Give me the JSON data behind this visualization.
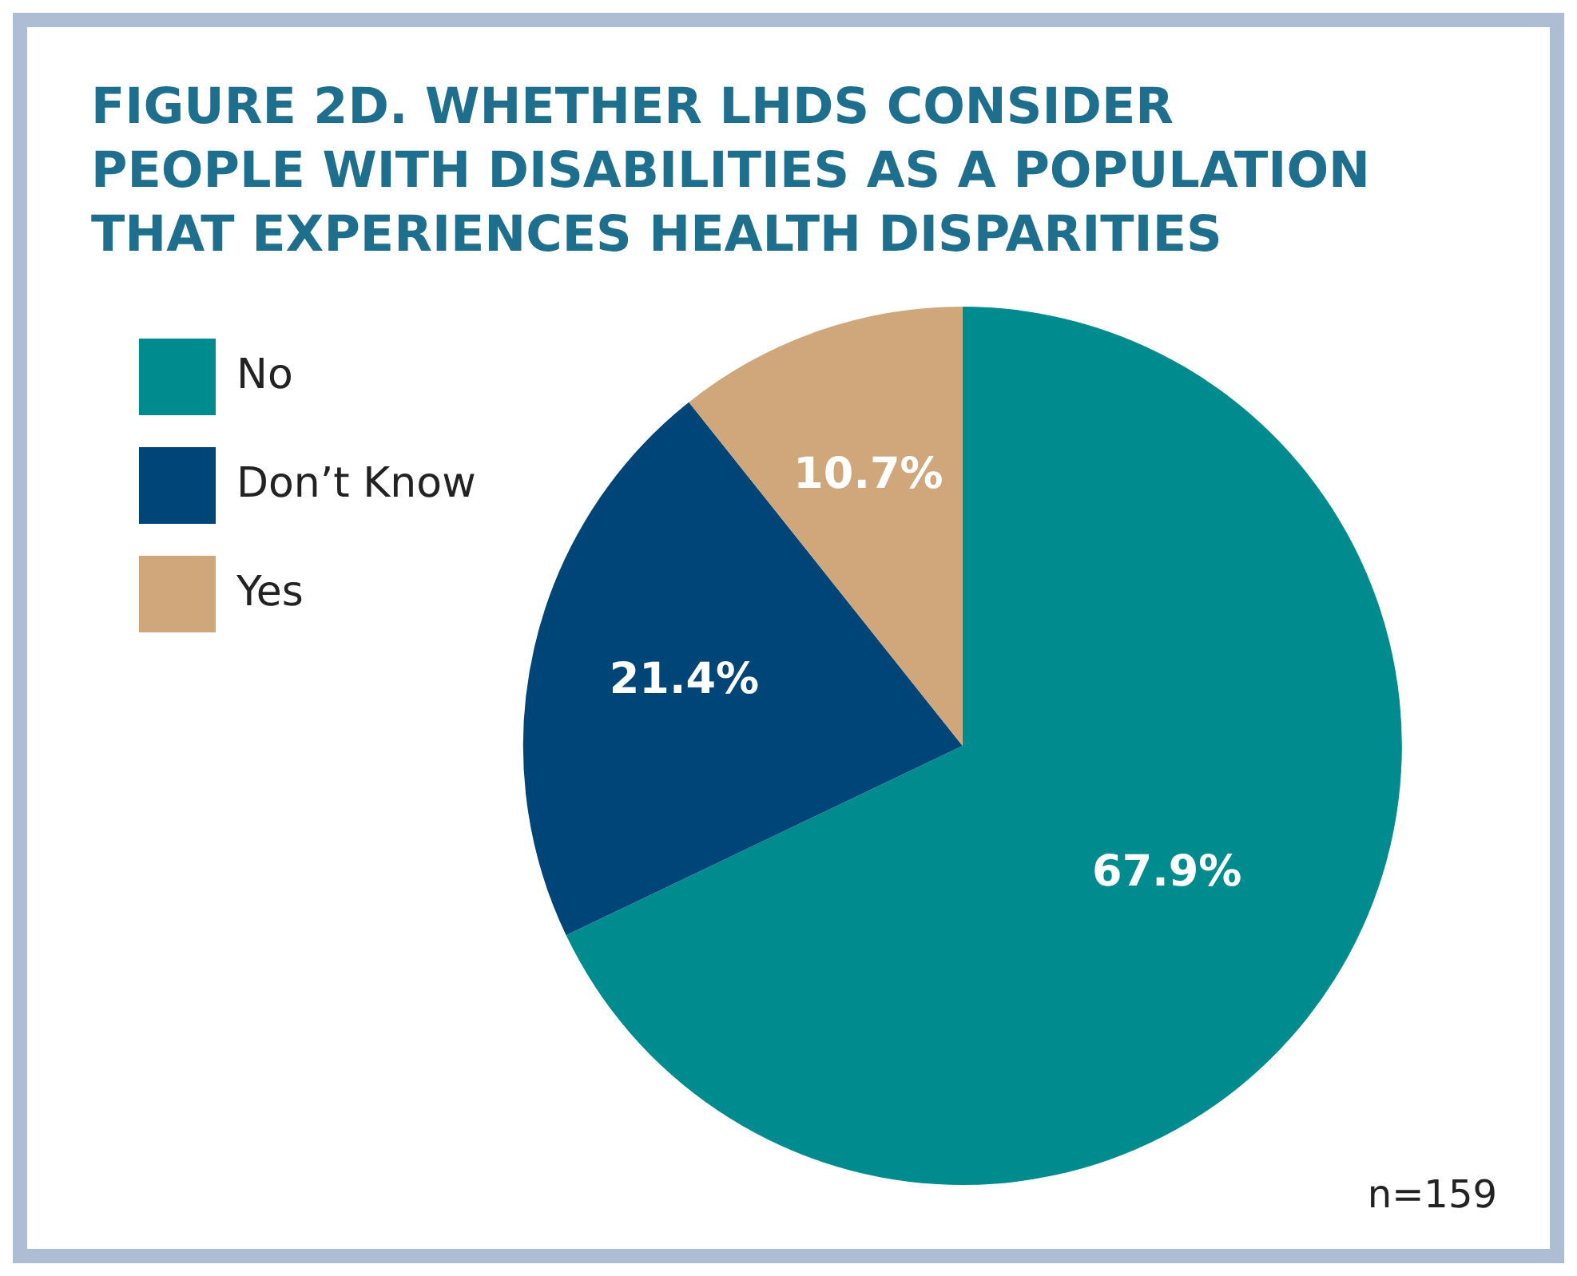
{
  "chart_data": {
    "type": "pie",
    "title": "FIGURE 2D. WHETHER LHDS CONSIDER PEOPLE WITH DISABILITIES AS A POPULATION THAT EXPERIENCES HEALTH DISPARITIES",
    "categories": [
      "No",
      "Don’t Know",
      "Yes"
    ],
    "values": [
      67.9,
      21.4,
      10.7
    ],
    "colors": [
      "#008b8f",
      "#004577",
      "#cfa77a"
    ],
    "value_labels": [
      "67.9%",
      "21.4%",
      "10.7%"
    ],
    "legend": "top left",
    "annotations": [
      "n=159"
    ]
  }
}
